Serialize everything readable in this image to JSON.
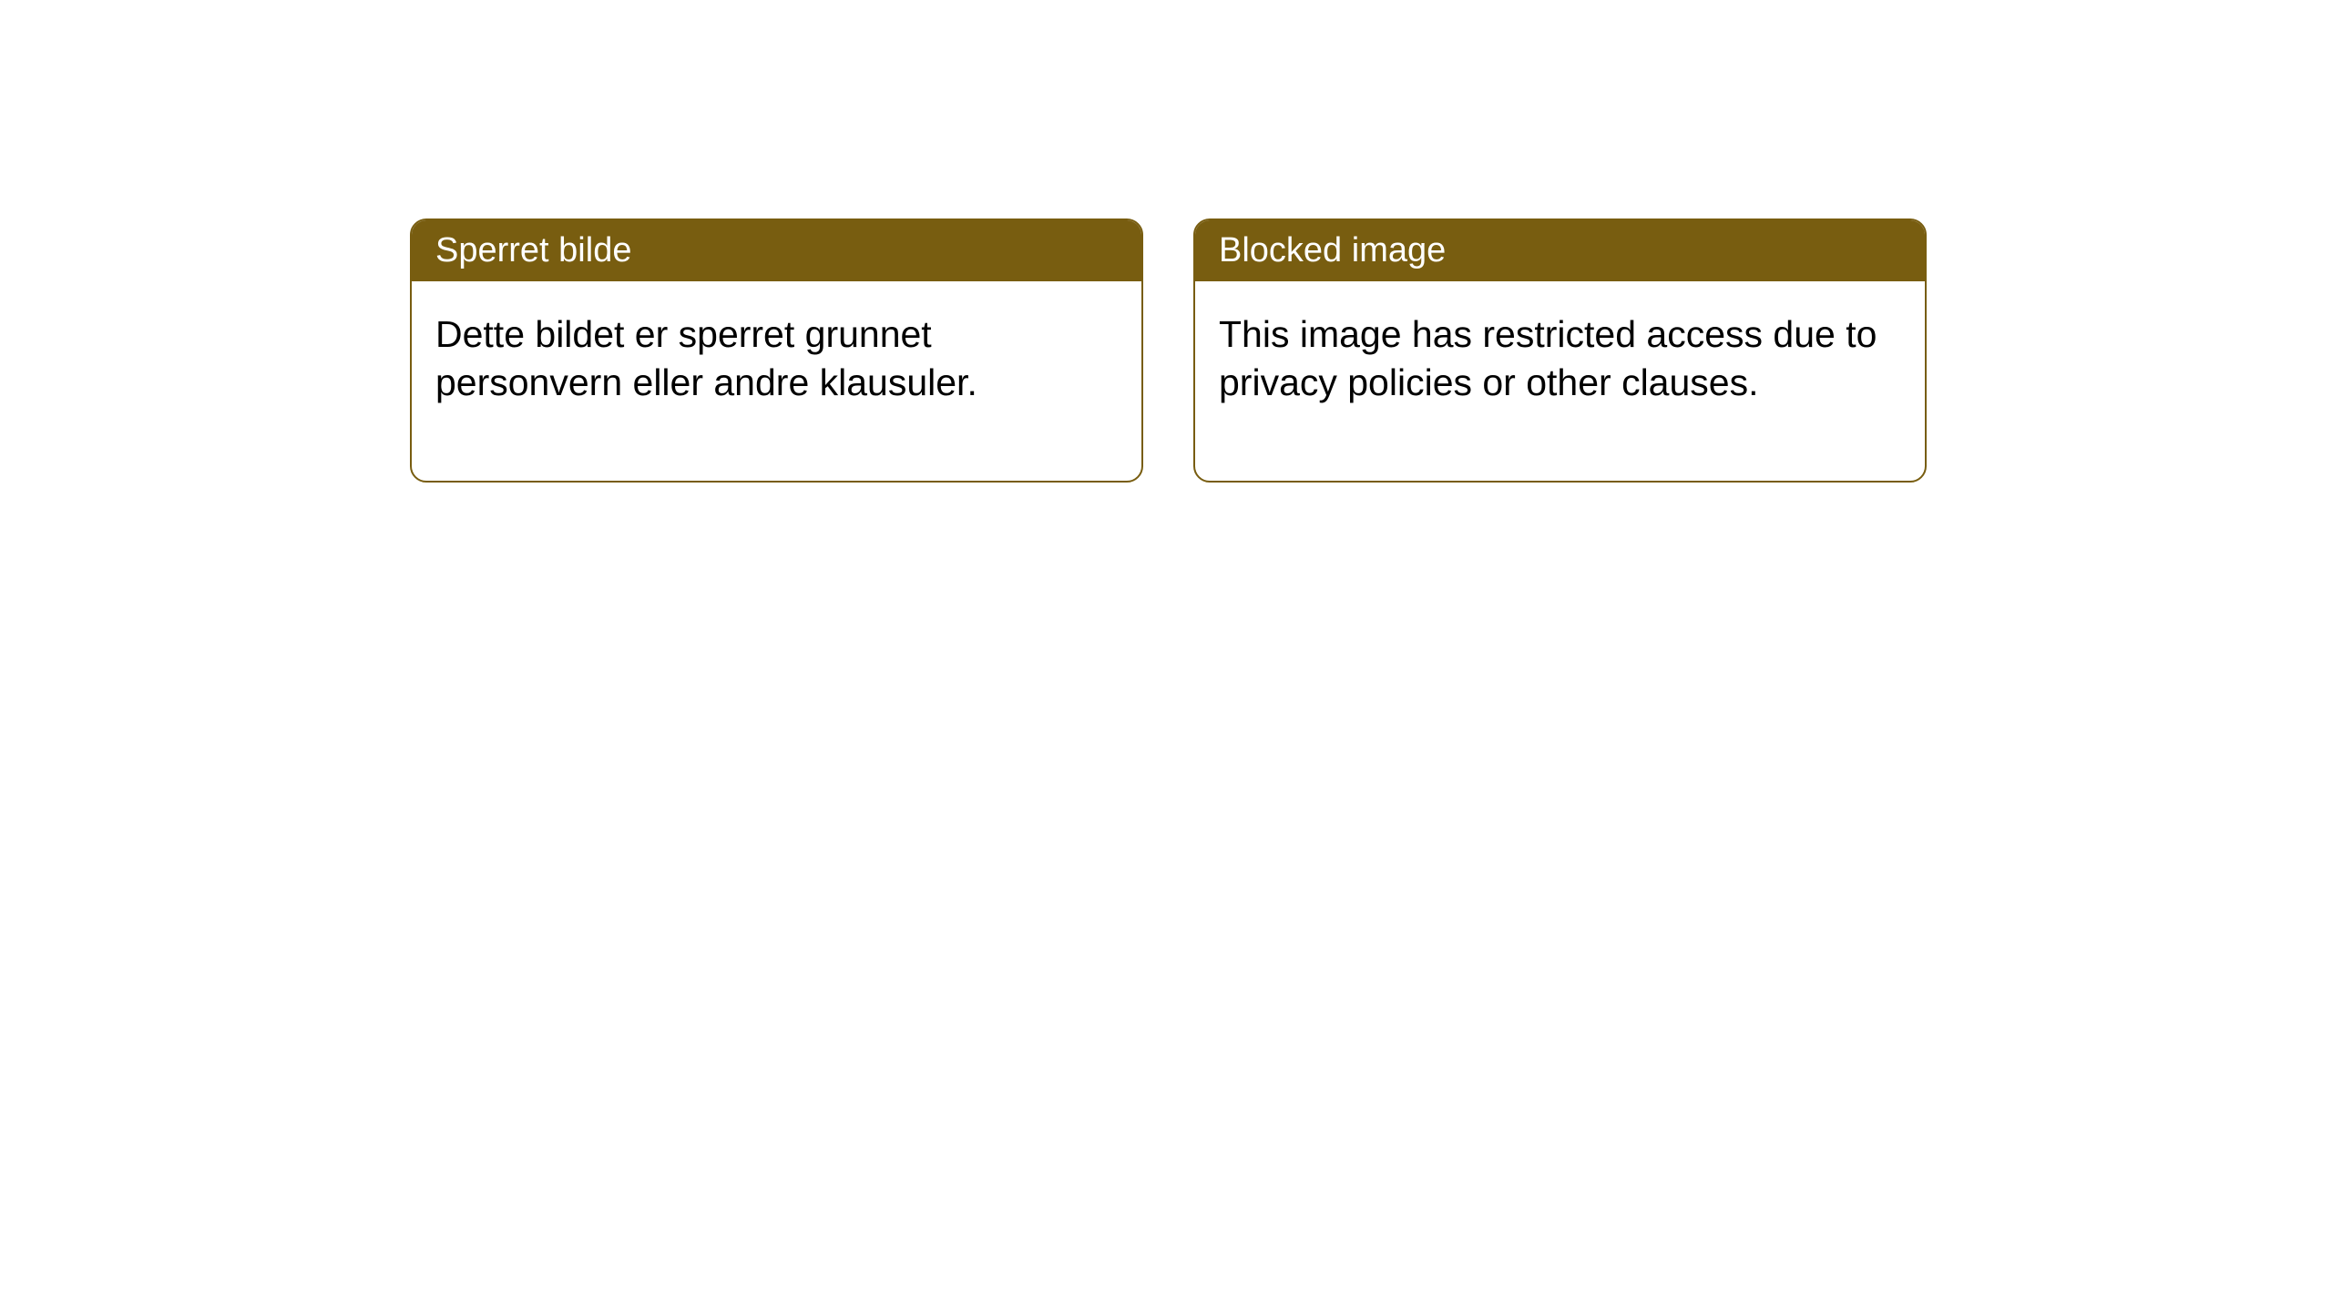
{
  "styling": {
    "header_bg": "#785d10",
    "border_color": "#785d10",
    "header_text_color": "#ffffff",
    "body_text_color": "#000000",
    "background_color": "#ffffff",
    "border_radius": 18,
    "header_fontsize": 38,
    "body_fontsize": 41
  },
  "boxes": [
    {
      "title": "Sperret bilde",
      "body": "Dette bildet er sperret grunnet personvern eller andre klausuler."
    },
    {
      "title": "Blocked image",
      "body": "This image has restricted access due to privacy policies or other clauses."
    }
  ]
}
